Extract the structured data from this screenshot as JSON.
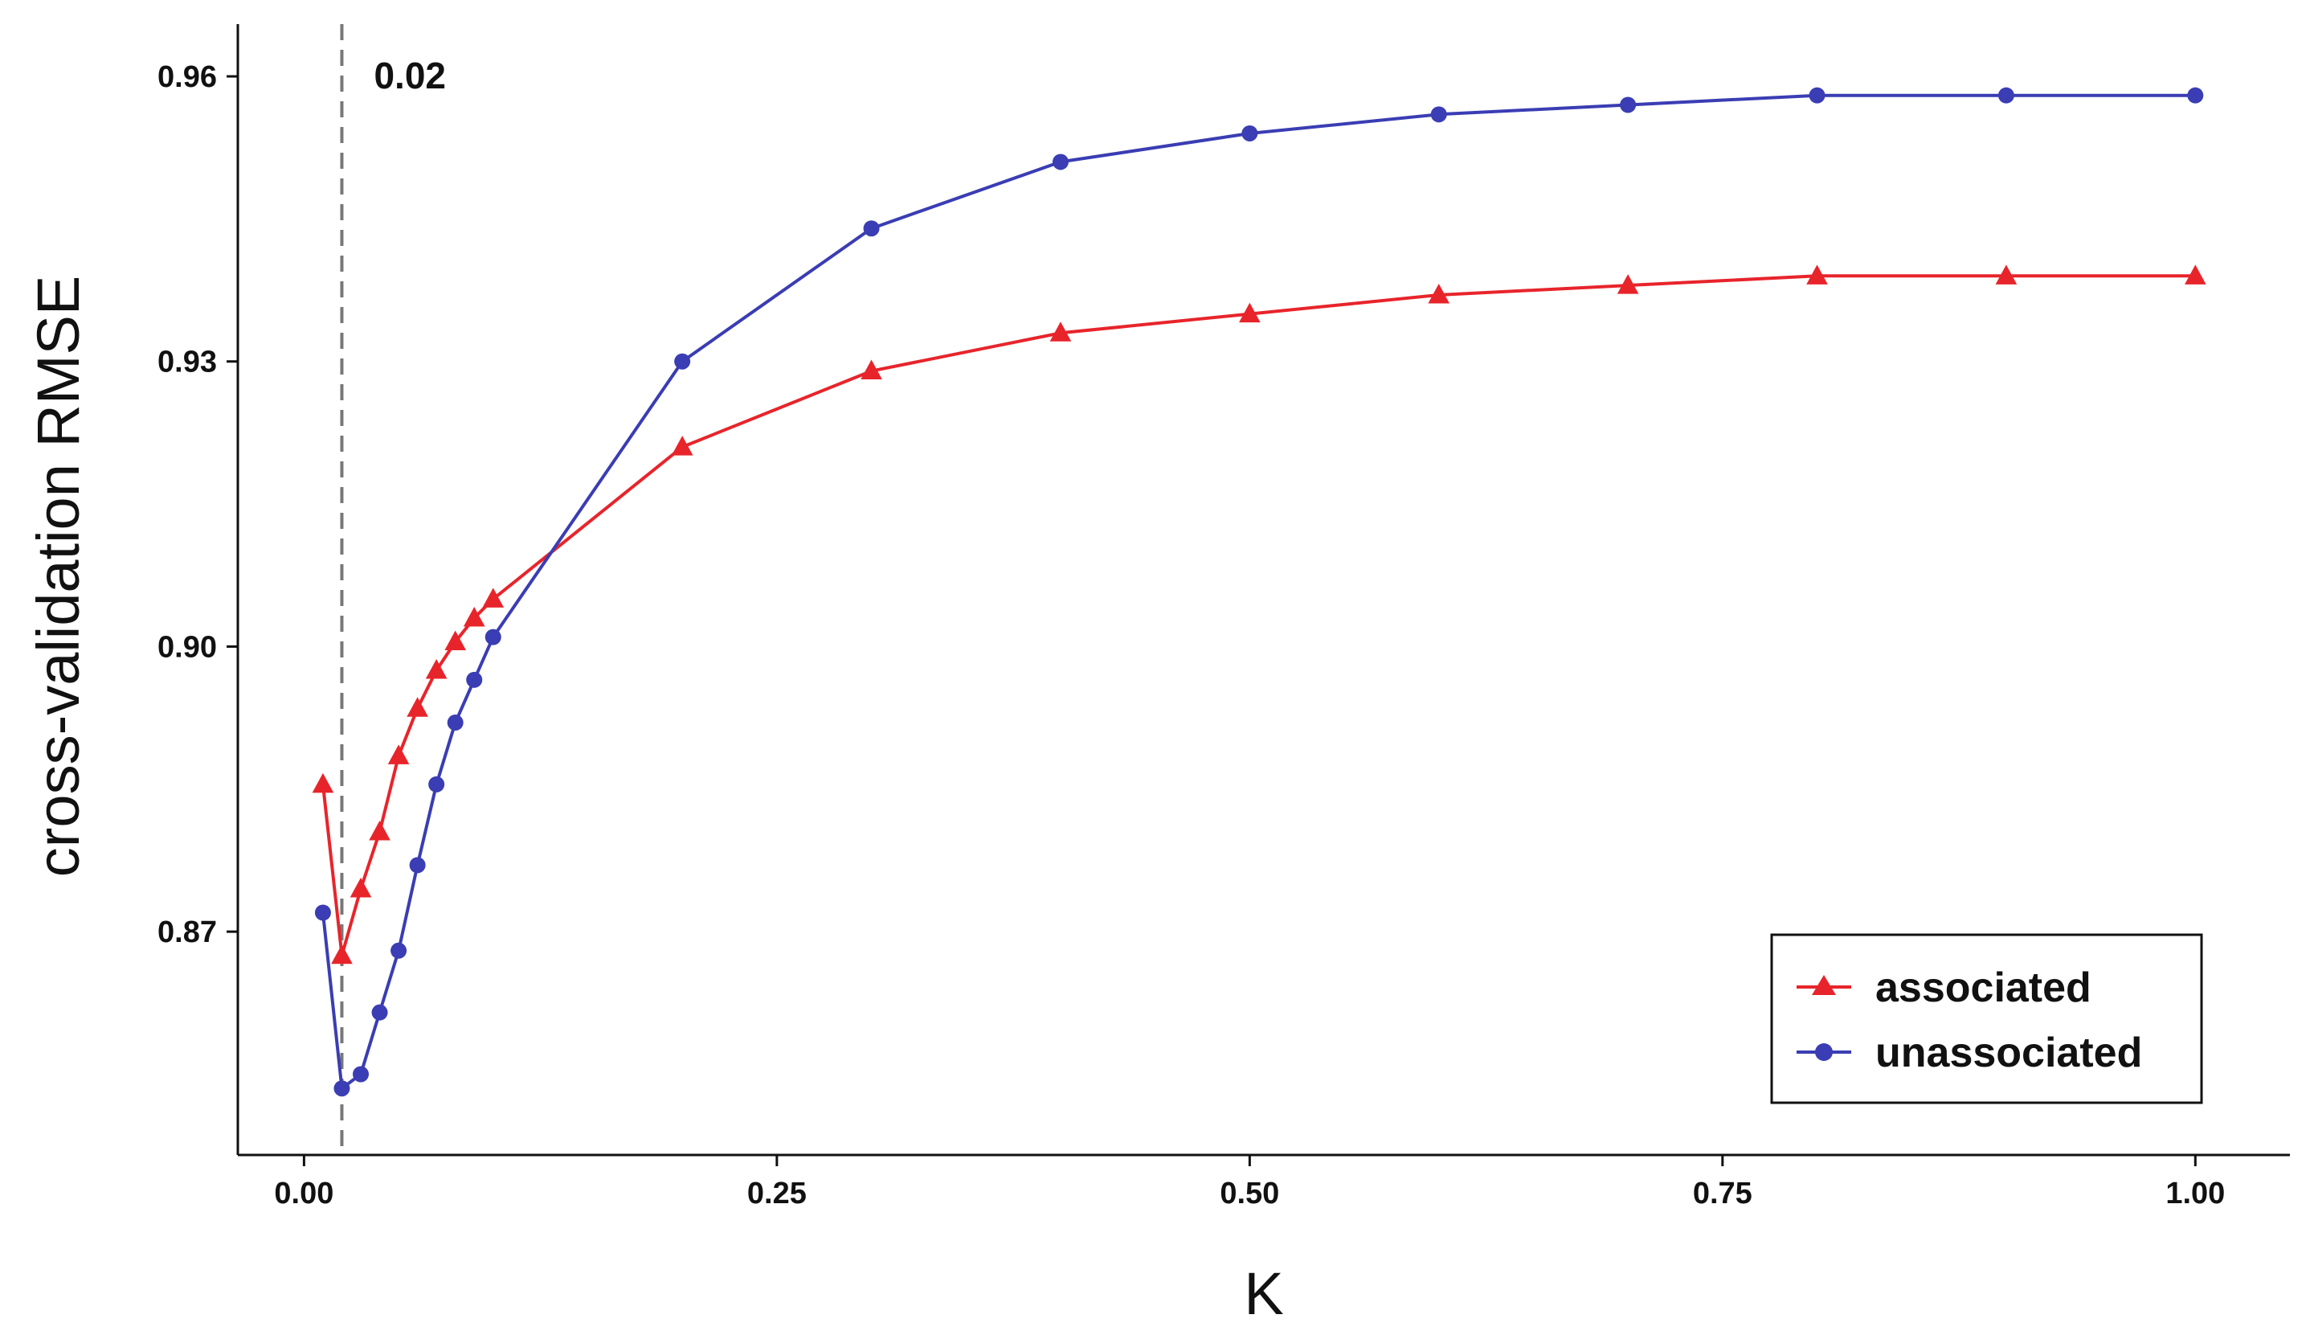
{
  "chart_data": {
    "type": "line",
    "title": "",
    "xlabel": "K",
    "ylabel": "cross-validation RMSE",
    "xlim": [
      -0.035,
      1.05
    ],
    "ylim": [
      0.8465,
      0.9655
    ],
    "x_ticks": [
      0.0,
      0.25,
      0.5,
      0.75,
      1.0
    ],
    "x_tick_labels": [
      "0.00",
      "0.25",
      "0.50",
      "0.75",
      "1.00"
    ],
    "y_ticks": [
      0.87,
      0.9,
      0.93,
      0.96
    ],
    "y_tick_labels": [
      "0.87",
      "0.90",
      "0.93",
      "0.96"
    ],
    "grid": false,
    "legend_position": "bottom-right",
    "annotation": {
      "x": 0.02,
      "label": "0.02",
      "style": "dashed vertical line"
    },
    "series": [
      {
        "name": "associated",
        "color": "#e8242b",
        "marker": "triangle",
        "x": [
          0.01,
          0.02,
          0.03,
          0.04,
          0.05,
          0.06,
          0.07,
          0.08,
          0.09,
          0.1,
          0.2,
          0.3,
          0.4,
          0.5,
          0.6,
          0.7,
          0.8,
          0.9,
          1.0
        ],
        "y": [
          0.8855,
          0.8675,
          0.8745,
          0.8805,
          0.8885,
          0.8935,
          0.8975,
          0.9005,
          0.903,
          0.905,
          0.921,
          0.929,
          0.933,
          0.935,
          0.937,
          0.938,
          0.939,
          0.939,
          0.939
        ]
      },
      {
        "name": "unassociated",
        "color": "#3a3db3",
        "marker": "circle",
        "x": [
          0.01,
          0.02,
          0.03,
          0.04,
          0.05,
          0.06,
          0.07,
          0.08,
          0.09,
          0.1,
          0.2,
          0.3,
          0.4,
          0.5,
          0.6,
          0.7,
          0.8,
          0.9,
          1.0
        ],
        "y": [
          0.872,
          0.8535,
          0.855,
          0.8615,
          0.868,
          0.877,
          0.8855,
          0.892,
          0.8965,
          0.901,
          0.93,
          0.944,
          0.951,
          0.954,
          0.956,
          0.957,
          0.958,
          0.958,
          0.958
        ]
      }
    ]
  }
}
